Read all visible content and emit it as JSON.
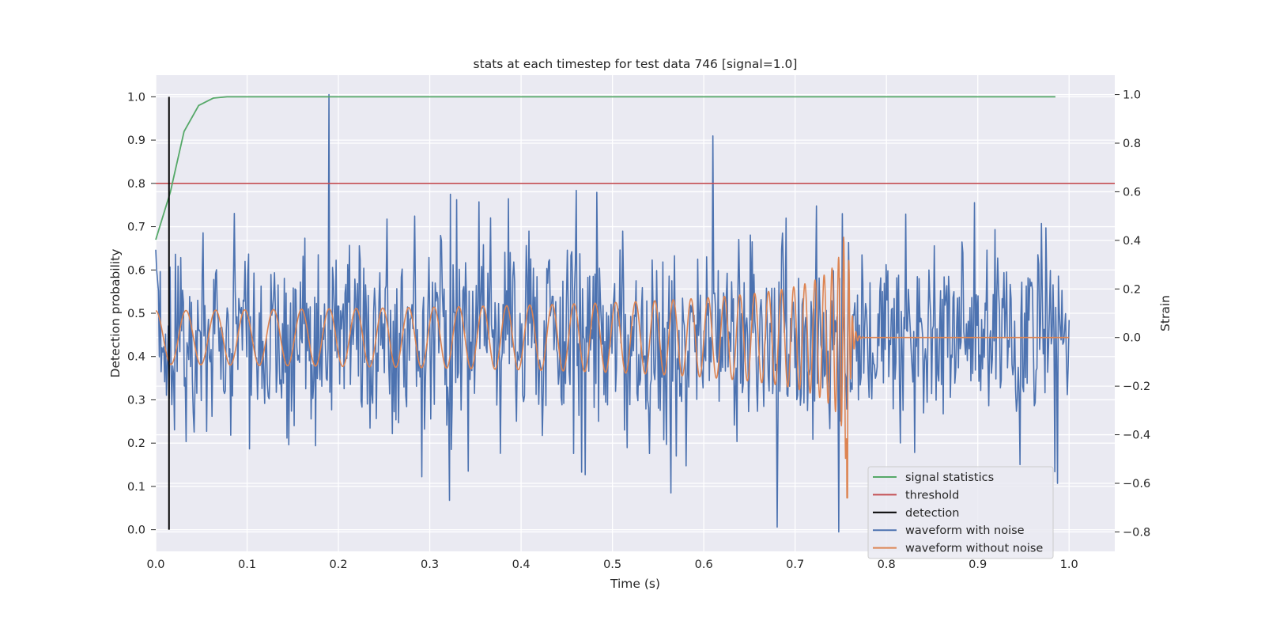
{
  "chart_data": {
    "type": "line",
    "title": "stats at each timestep for test data 746 [signal=1.0]",
    "xlabel": "Time (s)",
    "ylabel_left": "Detection probability",
    "ylabel_right": "Strain",
    "xlim": [
      0.0,
      1.05
    ],
    "ylim_left": [
      -0.05,
      1.05
    ],
    "ylim_right": [
      -0.88,
      1.08
    ],
    "x_ticks": [
      0.0,
      0.1,
      0.2,
      0.3,
      0.4,
      0.5,
      0.6,
      0.7,
      0.8,
      0.9,
      1.0
    ],
    "x_tick_labels": [
      "0.0",
      "0.1",
      "0.2",
      "0.3",
      "0.4",
      "0.5",
      "0.6",
      "0.7",
      "0.8",
      "0.9",
      "1.0"
    ],
    "y_left_ticks": [
      0.0,
      0.1,
      0.2,
      0.3,
      0.4,
      0.5,
      0.6,
      0.7,
      0.8,
      0.9,
      1.0
    ],
    "y_left_tick_labels": [
      "0.0",
      "0.1",
      "0.2",
      "0.3",
      "0.4",
      "0.5",
      "0.6",
      "0.7",
      "0.8",
      "0.9",
      "1.0"
    ],
    "y_right_ticks": [
      -0.8,
      -0.6,
      -0.4,
      -0.2,
      0.0,
      0.2,
      0.4,
      0.6,
      0.8,
      1.0
    ],
    "y_right_tick_labels": [
      "−0.8",
      "−0.6",
      "−0.4",
      "−0.2",
      "0.0",
      "0.2",
      "0.4",
      "0.6",
      "0.8",
      "1.0"
    ],
    "grid": true,
    "legend_position": "bottom-right",
    "series": [
      {
        "name": "signal statistics",
        "axis": "left",
        "color": "#55a868",
        "x": [
          0.0,
          0.016,
          0.031,
          0.047,
          0.063,
          0.078,
          0.094,
          0.2,
          0.4,
          0.6,
          0.8,
          0.985
        ],
        "values": [
          0.67,
          0.78,
          0.92,
          0.98,
          0.997,
          1.0,
          1.0,
          1.0,
          1.0,
          1.0,
          1.0,
          1.0
        ]
      },
      {
        "name": "threshold",
        "axis": "left",
        "color": "#c44e52",
        "x": [
          0.0,
          1.05
        ],
        "values": [
          0.8,
          0.8
        ]
      },
      {
        "name": "detection",
        "axis": "left",
        "color": "#000000",
        "x": [
          0.0145,
          0.0145
        ],
        "values": [
          0.0,
          1.0
        ]
      },
      {
        "name": "waveform with noise",
        "axis": "right",
        "color": "#4c72b0",
        "x_range": [
          0.0,
          1.0
        ],
        "points": 1024,
        "noise_sigma": 0.21,
        "annotated_peaks": [
          {
            "x": 0.19,
            "y": 1.0
          },
          {
            "x": 0.61,
            "y": 0.83
          },
          {
            "x": 0.68,
            "y": -0.78
          },
          {
            "x": 0.748,
            "y": -0.8
          },
          {
            "x": 0.752,
            "y": 0.51
          },
          {
            "x": 0.322,
            "y": -0.67
          },
          {
            "x": 0.987,
            "y": -0.6
          }
        ]
      },
      {
        "name": "waveform without noise",
        "axis": "right",
        "color": "#dd8452",
        "x_range": [
          0.0,
          1.0
        ],
        "merger_time": 0.757,
        "start_frequency_hz": 30,
        "start_amplitude": 0.11,
        "peak_amplitude": 0.5,
        "min_value": -0.66
      }
    ]
  }
}
